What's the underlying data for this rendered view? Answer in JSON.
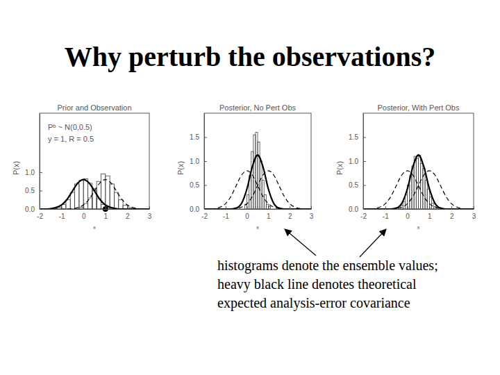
{
  "title": "Why perturb the observations?",
  "caption": [
    "histograms denote the ensemble values;",
    "heavy black line denotes theoretical",
    "expected analysis-error covariance"
  ],
  "chart_data": [
    {
      "type": "histogram",
      "title": "Prior and Observation",
      "x_label": "x",
      "y_label": "P(x)",
      "annotations": [
        "Pᵇ ~ N(0,0.5)",
        "y = 1, R = 0.5"
      ],
      "xlim": [
        -2,
        3
      ],
      "xticks": [
        -2,
        -1,
        0,
        1,
        2,
        3
      ],
      "ylim": [
        0,
        2.6
      ],
      "yticks": [
        {
          "value": 0,
          "label": "0.0"
        },
        0.5,
        {
          "value": 1,
          "label": "1.0"
        }
      ],
      "series": [
        {
          "type": "histogram",
          "color": "#ffffff",
          "bins": [
            -1.2,
            -1.0,
            -0.8,
            -0.6,
            -0.4,
            -0.2,
            0,
            0.2,
            0.4,
            0.6,
            0.8,
            1.0,
            1.2
          ],
          "values": [
            0.05,
            0.12,
            0.25,
            0.45,
            0.68,
            0.78,
            0.82,
            0.7,
            0.5,
            0.28,
            0.12,
            0.05
          ]
        },
        {
          "type": "histogram",
          "color": "#ffffff",
          "bins": [
            -0.2,
            0,
            0.2,
            0.4,
            0.6,
            0.8,
            1.0,
            1.2,
            1.4,
            1.6,
            1.8,
            2.0,
            2.2
          ],
          "values": [
            0.05,
            0.15,
            0.3,
            0.55,
            0.75,
            0.95,
            0.9,
            0.68,
            0.45,
            0.25,
            0.1,
            0.04
          ]
        },
        {
          "type": "line",
          "color": "#000000",
          "line_style": "solid",
          "x": [
            -2,
            -1.75,
            -1.5,
            -1.25,
            -1,
            -0.75,
            -0.5,
            -0.25,
            0,
            0.25,
            0.5,
            0.75,
            1,
            1.25,
            1.5,
            1.75,
            2,
            2.25,
            2.5,
            2.75,
            3
          ],
          "values": [
            0,
            0,
            0.01,
            0.04,
            0.11,
            0.26,
            0.49,
            0.71,
            0.8,
            0.71,
            0.49,
            0.26,
            0.11,
            0.04,
            0.01,
            0,
            0,
            0,
            0,
            0,
            0
          ]
        },
        {
          "type": "line",
          "color": "#000000",
          "line_style": "dashed",
          "x": [
            -2,
            -1.75,
            -1.5,
            -1.25,
            -1,
            -0.75,
            -0.5,
            -0.25,
            0,
            0.25,
            0.5,
            0.75,
            1,
            1.25,
            1.5,
            1.75,
            2,
            2.25,
            2.5,
            2.75,
            3
          ],
          "values": [
            0,
            0,
            0,
            0,
            0,
            0,
            0.01,
            0.04,
            0.11,
            0.26,
            0.49,
            0.71,
            0.8,
            0.71,
            0.49,
            0.26,
            0.11,
            0.04,
            0.01,
            0,
            0
          ]
        },
        {
          "type": "scatter",
          "color": "#000000",
          "marker": "circle",
          "x": [
            1
          ],
          "values": [
            0
          ]
        }
      ]
    },
    {
      "type": "histogram",
      "title": "Posterior, No Pert Obs",
      "x_label": "x",
      "y_label": "P(x)",
      "xlim": [
        -2,
        3
      ],
      "xticks": [
        -2,
        -1,
        0,
        1,
        2,
        3
      ],
      "ylim": [
        0,
        2
      ],
      "yticks": [
        {
          "value": 0,
          "label": "0.0"
        },
        0.5,
        {
          "value": 1,
          "label": "1.0"
        },
        1.5
      ],
      "series": [
        {
          "type": "histogram",
          "color": "#ffffff",
          "bins": [
            -0.1,
            0,
            0.1,
            0.2,
            0.3,
            0.4,
            0.5,
            0.6,
            0.7,
            0.8,
            0.9,
            1.0,
            1.1
          ],
          "values": [
            0.1,
            0.3,
            0.7,
            1.2,
            1.55,
            1.6,
            1.4,
            1.0,
            0.6,
            0.3,
            0.1,
            0.05
          ]
        },
        {
          "type": "line",
          "color": "#000000",
          "line_style": "dashed",
          "x": [
            -2,
            -1.75,
            -1.5,
            -1.25,
            -1,
            -0.75,
            -0.5,
            -0.25,
            0,
            0.25,
            0.5,
            0.75,
            1,
            1.25,
            1.5,
            1.75,
            2,
            2.25,
            2.5,
            2.75,
            3
          ],
          "values": [
            0,
            0,
            0.01,
            0.04,
            0.11,
            0.26,
            0.49,
            0.71,
            0.8,
            0.71,
            0.49,
            0.26,
            0.11,
            0.04,
            0.01,
            0,
            0,
            0,
            0,
            0,
            0
          ]
        },
        {
          "type": "line",
          "color": "#000000",
          "line_style": "dashed",
          "x": [
            -2,
            -1.75,
            -1.5,
            -1.25,
            -1,
            -0.75,
            -0.5,
            -0.25,
            0,
            0.25,
            0.5,
            0.75,
            1,
            1.25,
            1.5,
            1.75,
            2,
            2.25,
            2.5,
            2.75,
            3
          ],
          "values": [
            0,
            0,
            0,
            0,
            0,
            0,
            0.01,
            0.04,
            0.11,
            0.26,
            0.49,
            0.71,
            0.8,
            0.71,
            0.49,
            0.26,
            0.11,
            0.04,
            0.01,
            0,
            0
          ]
        },
        {
          "type": "line",
          "color": "#000000",
          "line_style": "solid",
          "x": [
            -2,
            -1.75,
            -1.5,
            -1.25,
            -1,
            -0.75,
            -0.5,
            -0.25,
            0,
            0.25,
            0.5,
            0.75,
            1,
            1.25,
            1.5,
            1.75,
            2,
            2.25,
            2.5,
            2.75,
            3
          ],
          "values": [
            0,
            0,
            0,
            0,
            0,
            0,
            0.02,
            0.12,
            0.42,
            0.88,
            1.13,
            0.88,
            0.42,
            0.12,
            0.02,
            0,
            0,
            0,
            0,
            0,
            0
          ]
        }
      ]
    },
    {
      "type": "histogram",
      "title": "Posterior, With Pert Obs",
      "x_label": "x",
      "y_label": "P(x)",
      "xlim": [
        -2,
        3
      ],
      "xticks": [
        -2,
        -1,
        0,
        1,
        2,
        3
      ],
      "ylim": [
        0,
        2
      ],
      "yticks": [
        {
          "value": 0,
          "label": "0.0"
        },
        0.5,
        {
          "value": 1,
          "label": "1.0"
        },
        1.5
      ],
      "series": [
        {
          "type": "histogram",
          "color": "#ffffff",
          "bins": [
            -0.3,
            -0.2,
            -0.1,
            0,
            0.1,
            0.2,
            0.3,
            0.4,
            0.5,
            0.6,
            0.7,
            0.8,
            0.9,
            1.0,
            1.1,
            1.2,
            1.3
          ],
          "values": [
            0.08,
            0.15,
            0.3,
            0.5,
            0.7,
            0.9,
            1.1,
            1.05,
            1.12,
            0.95,
            0.85,
            0.6,
            0.42,
            0.25,
            0.12,
            0.05
          ]
        },
        {
          "type": "line",
          "color": "#000000",
          "line_style": "dashed",
          "x": [
            -2,
            -1.75,
            -1.5,
            -1.25,
            -1,
            -0.75,
            -0.5,
            -0.25,
            0,
            0.25,
            0.5,
            0.75,
            1,
            1.25,
            1.5,
            1.75,
            2,
            2.25,
            2.5,
            2.75,
            3
          ],
          "values": [
            0,
            0,
            0.01,
            0.04,
            0.11,
            0.26,
            0.49,
            0.71,
            0.8,
            0.71,
            0.49,
            0.26,
            0.11,
            0.04,
            0.01,
            0,
            0,
            0,
            0,
            0,
            0
          ]
        },
        {
          "type": "line",
          "color": "#000000",
          "line_style": "dashed",
          "x": [
            -2,
            -1.75,
            -1.5,
            -1.25,
            -1,
            -0.75,
            -0.5,
            -0.25,
            0,
            0.25,
            0.5,
            0.75,
            1,
            1.25,
            1.5,
            1.75,
            2,
            2.25,
            2.5,
            2.75,
            3
          ],
          "values": [
            0,
            0,
            0,
            0,
            0,
            0,
            0.01,
            0.04,
            0.11,
            0.26,
            0.49,
            0.71,
            0.8,
            0.71,
            0.49,
            0.26,
            0.11,
            0.04,
            0.01,
            0,
            0
          ]
        },
        {
          "type": "line",
          "color": "#000000",
          "line_style": "solid",
          "x": [
            -2,
            -1.75,
            -1.5,
            -1.25,
            -1,
            -0.75,
            -0.5,
            -0.25,
            0,
            0.25,
            0.5,
            0.75,
            1,
            1.25,
            1.5,
            1.75,
            2,
            2.25,
            2.5,
            2.75,
            3
          ],
          "values": [
            0,
            0,
            0,
            0,
            0,
            0,
            0.02,
            0.12,
            0.42,
            0.88,
            1.13,
            0.88,
            0.42,
            0.12,
            0.02,
            0,
            0,
            0,
            0,
            0,
            0
          ]
        }
      ]
    }
  ]
}
